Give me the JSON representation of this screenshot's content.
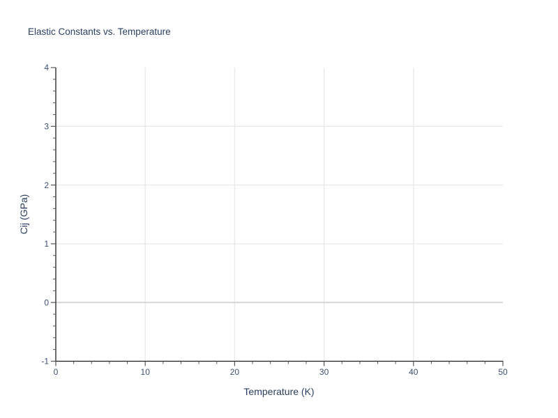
{
  "chart_data": {
    "type": "line",
    "title": "Elastic Constants vs. Temperature",
    "xlabel": "Temperature (K)",
    "ylabel": "Cij (GPa)",
    "x_axis": {
      "range": [
        0,
        50
      ],
      "major_ticks": [
        0,
        10,
        20,
        30,
        40,
        50
      ],
      "tick_labels": [
        "0",
        "10",
        "20",
        "30",
        "40",
        "50"
      ],
      "minor_step": 2
    },
    "y_axis": {
      "range": [
        -1,
        4
      ],
      "major_ticks": [
        -1,
        0,
        1,
        2,
        3,
        4
      ],
      "tick_labels": [
        "-1",
        "0",
        "1",
        "2",
        "3",
        "4"
      ],
      "minor_step": 0.2
    },
    "series": [],
    "grid": true,
    "zero_line": true,
    "legend": false,
    "colors": {
      "title_text": "#2a3f5f",
      "axis_label_text": "#2a3f5f",
      "tick_text": "#3d5070",
      "axis_line": "#1c1c1c",
      "tick_mark": "#555555",
      "grid_line": "#e8e8e8",
      "zero_line": "#d4d4d4",
      "background": "#ffffff"
    }
  }
}
